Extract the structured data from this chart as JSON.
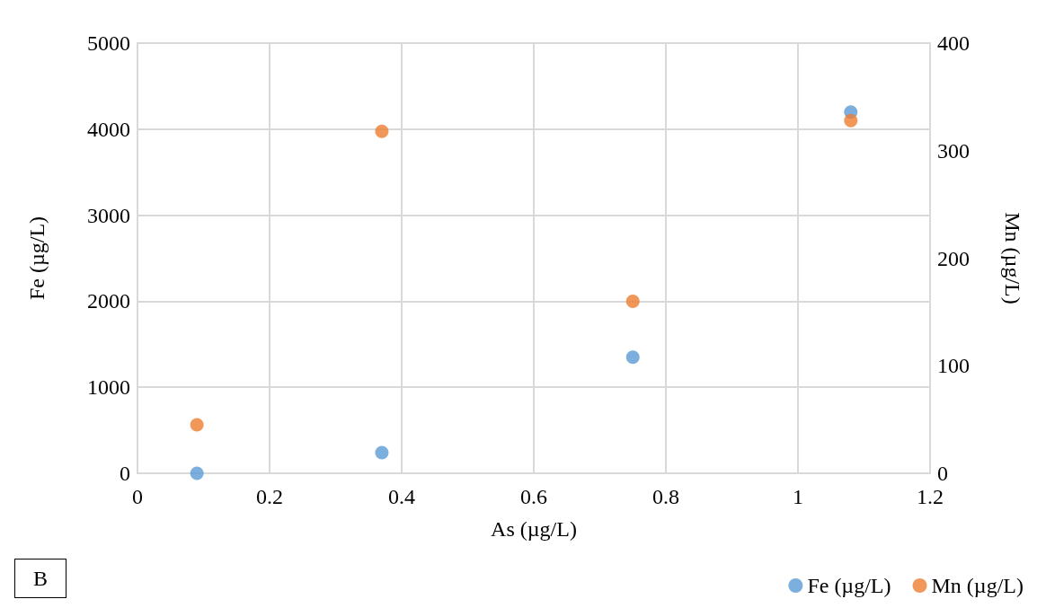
{
  "chart_data": {
    "type": "scatter",
    "xlabel": "As (µg/L)",
    "ylabel": "Fe (µg/L)",
    "y2label": "Mn (µg/L)",
    "x": [
      0.09,
      0.37,
      0.75,
      1.08
    ],
    "series": [
      {
        "name": "Fe (µg/L)",
        "color": "#5b9bd5",
        "values": [
          0,
          240,
          1350,
          4200
        ]
      },
      {
        "name": "Mn (µg/L)",
        "color": "#ed7d31",
        "axis": "y2",
        "values": [
          45,
          318,
          160,
          328
        ]
      }
    ],
    "xlim": [
      0,
      1.2
    ],
    "xticks": [
      0,
      0.2,
      0.4,
      0.6,
      0.8,
      1,
      1.2
    ],
    "ylim": [
      0,
      5000
    ],
    "yticks": [
      0,
      1000,
      2000,
      3000,
      4000,
      5000
    ],
    "y2lim": [
      0,
      400
    ],
    "y2ticks": [
      0,
      100,
      200,
      300,
      400
    ],
    "annotations": [
      "B"
    ],
    "grid": true,
    "legend": "bottom right",
    "marker": "circle"
  }
}
